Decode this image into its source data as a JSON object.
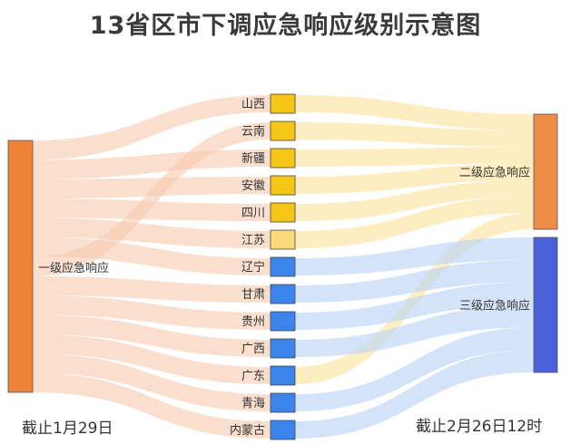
{
  "title": "13省区市下调应急响应级别示意图",
  "caption_left": "截止1月29日",
  "caption_right": "截止2月26日12时",
  "source_node": {
    "label": "一级应急响应",
    "color": "#ee8236"
  },
  "target_nodes": [
    {
      "id": "level2",
      "label": "二级应急响应",
      "color": "#ee8c4a"
    },
    {
      "id": "level3",
      "label": "三级应急响应",
      "color": "#4a5fd8"
    }
  ],
  "provinces": [
    {
      "name": "山西",
      "color": "#f5c518",
      "target": "level2"
    },
    {
      "name": "云南",
      "color": "#f5c518",
      "target": "level2"
    },
    {
      "name": "新疆",
      "color": "#f5c518",
      "target": "level2"
    },
    {
      "name": "安徽",
      "color": "#f5c518",
      "target": "level2"
    },
    {
      "name": "四川",
      "color": "#f5c518",
      "target": "level2"
    },
    {
      "name": "江苏",
      "color": "#fcd97a",
      "target": "level2"
    },
    {
      "name": "辽宁",
      "color": "#3a84ec",
      "target": "level3"
    },
    {
      "name": "甘肃",
      "color": "#3a84ec",
      "target": "level3"
    },
    {
      "name": "贵州",
      "color": "#3a84ec",
      "target": "level3"
    },
    {
      "name": "广西",
      "color": "#3a84ec",
      "target": "level3"
    },
    {
      "name": "广东",
      "color": "#3a84ec",
      "target": "level2"
    },
    {
      "name": "青海",
      "color": "#3a84ec",
      "target": "level3"
    },
    {
      "name": "内蒙古",
      "color": "#3a84ec",
      "target": "level3"
    }
  ],
  "left_order": [
    "山西",
    "新疆",
    "安徽",
    "四川",
    "江苏",
    "辽宁",
    "云南",
    "甘肃",
    "贵州",
    "广西",
    "广东",
    "青海",
    "内蒙古"
  ],
  "flow_colors": {
    "left": "#f7c9ae",
    "to_level2": "#fde3a0",
    "to_level3": "#bcd6f8"
  }
}
